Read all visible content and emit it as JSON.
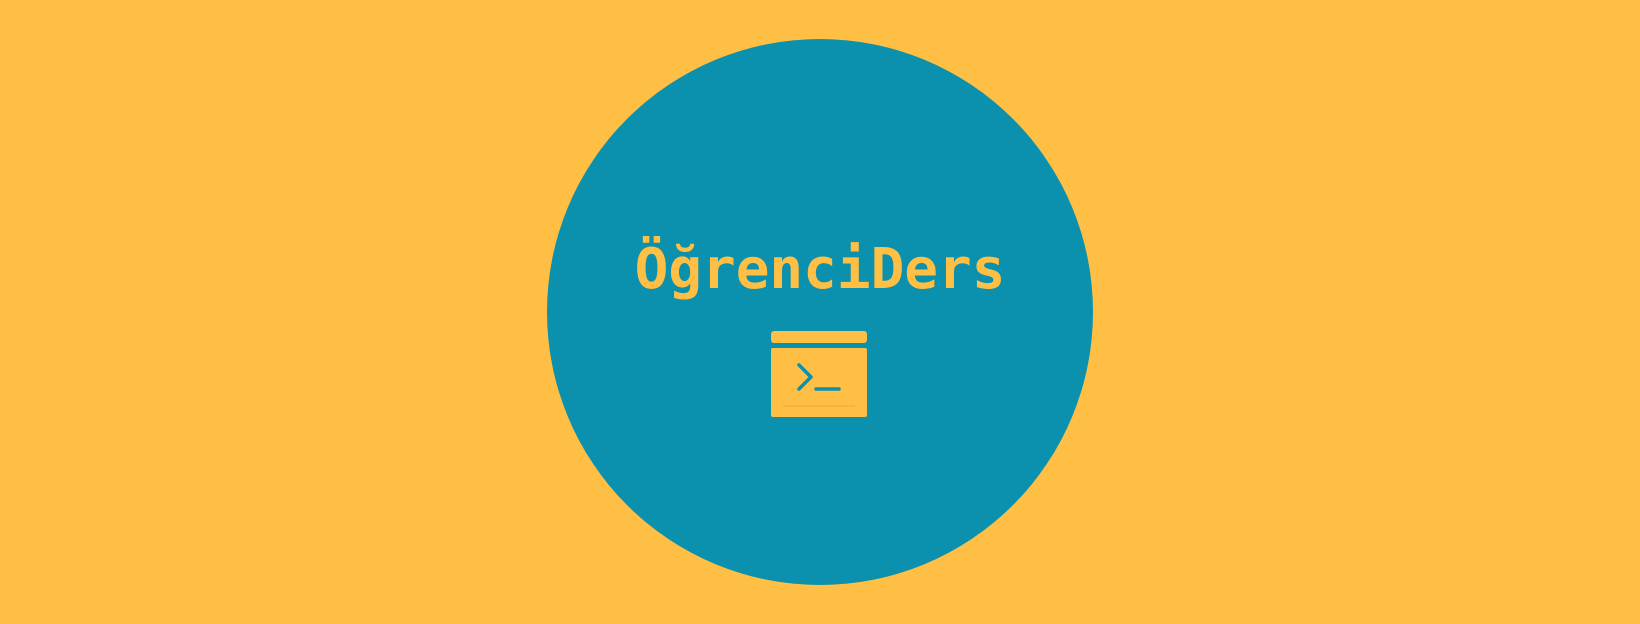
{
  "brand": {
    "name": "ÖğrenciDers"
  },
  "icon": {
    "name": "terminal-window-icon"
  },
  "colors": {
    "background": "#FFBF45",
    "circle": "#0B91AD",
    "accent": "#FFBF45"
  }
}
